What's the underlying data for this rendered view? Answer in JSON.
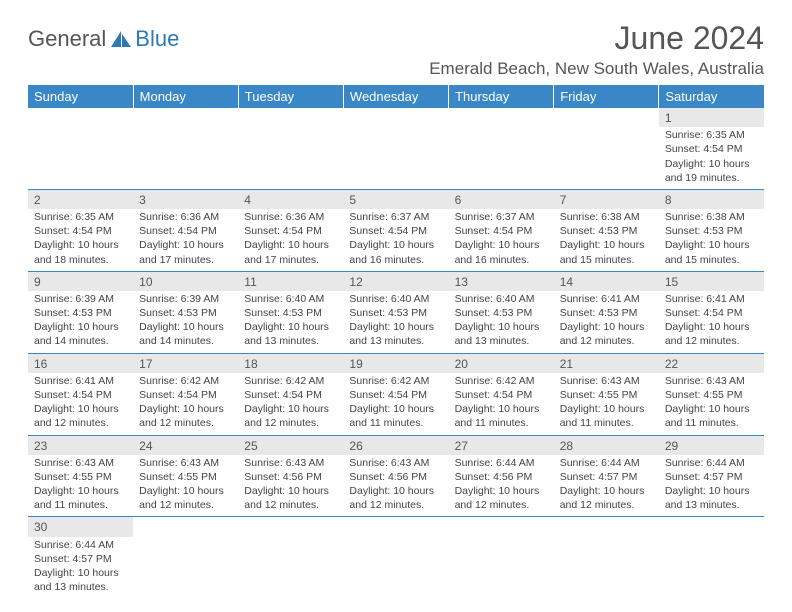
{
  "logo": {
    "part1": "General",
    "part2": "Blue"
  },
  "title": "June 2024",
  "location": "Emerald Beach, New South Wales, Australia",
  "colors": {
    "header_bg": "#3a87c7",
    "header_text": "#ffffff",
    "daynum_bg": "#e8e8e8",
    "border": "#3a87c7",
    "text": "#444444",
    "logo_gray": "#555555",
    "logo_blue": "#2d79b5"
  },
  "day_headers": [
    "Sunday",
    "Monday",
    "Tuesday",
    "Wednesday",
    "Thursday",
    "Friday",
    "Saturday"
  ],
  "weeks": [
    [
      null,
      null,
      null,
      null,
      null,
      null,
      {
        "n": "1",
        "sr": "6:35 AM",
        "ss": "4:54 PM",
        "dl": "10 hours and 19 minutes."
      }
    ],
    [
      {
        "n": "2",
        "sr": "6:35 AM",
        "ss": "4:54 PM",
        "dl": "10 hours and 18 minutes."
      },
      {
        "n": "3",
        "sr": "6:36 AM",
        "ss": "4:54 PM",
        "dl": "10 hours and 17 minutes."
      },
      {
        "n": "4",
        "sr": "6:36 AM",
        "ss": "4:54 PM",
        "dl": "10 hours and 17 minutes."
      },
      {
        "n": "5",
        "sr": "6:37 AM",
        "ss": "4:54 PM",
        "dl": "10 hours and 16 minutes."
      },
      {
        "n": "6",
        "sr": "6:37 AM",
        "ss": "4:54 PM",
        "dl": "10 hours and 16 minutes."
      },
      {
        "n": "7",
        "sr": "6:38 AM",
        "ss": "4:53 PM",
        "dl": "10 hours and 15 minutes."
      },
      {
        "n": "8",
        "sr": "6:38 AM",
        "ss": "4:53 PM",
        "dl": "10 hours and 15 minutes."
      }
    ],
    [
      {
        "n": "9",
        "sr": "6:39 AM",
        "ss": "4:53 PM",
        "dl": "10 hours and 14 minutes."
      },
      {
        "n": "10",
        "sr": "6:39 AM",
        "ss": "4:53 PM",
        "dl": "10 hours and 14 minutes."
      },
      {
        "n": "11",
        "sr": "6:40 AM",
        "ss": "4:53 PM",
        "dl": "10 hours and 13 minutes."
      },
      {
        "n": "12",
        "sr": "6:40 AM",
        "ss": "4:53 PM",
        "dl": "10 hours and 13 minutes."
      },
      {
        "n": "13",
        "sr": "6:40 AM",
        "ss": "4:53 PM",
        "dl": "10 hours and 13 minutes."
      },
      {
        "n": "14",
        "sr": "6:41 AM",
        "ss": "4:53 PM",
        "dl": "10 hours and 12 minutes."
      },
      {
        "n": "15",
        "sr": "6:41 AM",
        "ss": "4:54 PM",
        "dl": "10 hours and 12 minutes."
      }
    ],
    [
      {
        "n": "16",
        "sr": "6:41 AM",
        "ss": "4:54 PM",
        "dl": "10 hours and 12 minutes."
      },
      {
        "n": "17",
        "sr": "6:42 AM",
        "ss": "4:54 PM",
        "dl": "10 hours and 12 minutes."
      },
      {
        "n": "18",
        "sr": "6:42 AM",
        "ss": "4:54 PM",
        "dl": "10 hours and 12 minutes."
      },
      {
        "n": "19",
        "sr": "6:42 AM",
        "ss": "4:54 PM",
        "dl": "10 hours and 11 minutes."
      },
      {
        "n": "20",
        "sr": "6:42 AM",
        "ss": "4:54 PM",
        "dl": "10 hours and 11 minutes."
      },
      {
        "n": "21",
        "sr": "6:43 AM",
        "ss": "4:55 PM",
        "dl": "10 hours and 11 minutes."
      },
      {
        "n": "22",
        "sr": "6:43 AM",
        "ss": "4:55 PM",
        "dl": "10 hours and 11 minutes."
      }
    ],
    [
      {
        "n": "23",
        "sr": "6:43 AM",
        "ss": "4:55 PM",
        "dl": "10 hours and 11 minutes."
      },
      {
        "n": "24",
        "sr": "6:43 AM",
        "ss": "4:55 PM",
        "dl": "10 hours and 12 minutes."
      },
      {
        "n": "25",
        "sr": "6:43 AM",
        "ss": "4:56 PM",
        "dl": "10 hours and 12 minutes."
      },
      {
        "n": "26",
        "sr": "6:43 AM",
        "ss": "4:56 PM",
        "dl": "10 hours and 12 minutes."
      },
      {
        "n": "27",
        "sr": "6:44 AM",
        "ss": "4:56 PM",
        "dl": "10 hours and 12 minutes."
      },
      {
        "n": "28",
        "sr": "6:44 AM",
        "ss": "4:57 PM",
        "dl": "10 hours and 12 minutes."
      },
      {
        "n": "29",
        "sr": "6:44 AM",
        "ss": "4:57 PM",
        "dl": "10 hours and 13 minutes."
      }
    ],
    [
      {
        "n": "30",
        "sr": "6:44 AM",
        "ss": "4:57 PM",
        "dl": "10 hours and 13 minutes."
      },
      null,
      null,
      null,
      null,
      null,
      null
    ]
  ],
  "labels": {
    "sunrise": "Sunrise: ",
    "sunset": "Sunset: ",
    "daylight": "Daylight: "
  }
}
